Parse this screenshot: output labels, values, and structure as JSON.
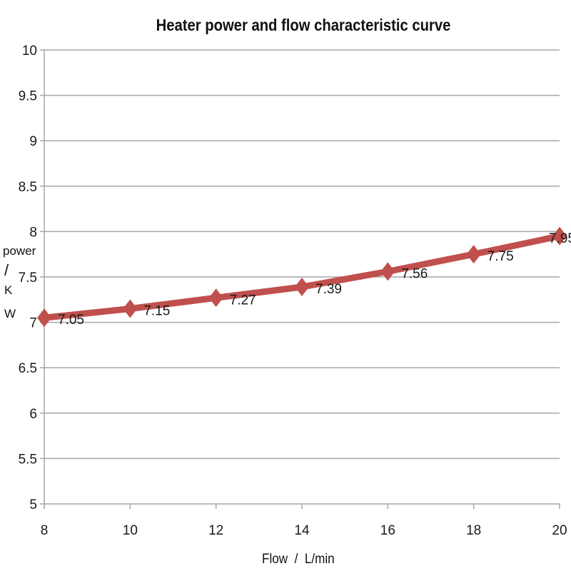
{
  "chart_data": {
    "type": "line",
    "title": "Heater power and flow characteristic curve",
    "xlabel": "Flow  /  L/min",
    "ylabel": "power / K W",
    "x": [
      8,
      10,
      12,
      14,
      16,
      18,
      20
    ],
    "series": [
      {
        "name": "power",
        "values": [
          7.05,
          7.15,
          7.27,
          7.39,
          7.56,
          7.75,
          7.95
        ],
        "data_labels": [
          "7.05",
          "7.15",
          "7.27",
          "7.39",
          "7.56",
          "7.75",
          "7.95"
        ],
        "color": "#c0504d",
        "marker": "diamond"
      }
    ],
    "xlim": [
      8,
      20
    ],
    "ylim": [
      5,
      10
    ],
    "xticks": [
      "8",
      "10",
      "12",
      "14",
      "16",
      "18",
      "20"
    ],
    "yticks": [
      "5",
      "5.5",
      "6",
      "6.5",
      "7",
      "7.5",
      "8",
      "8.5",
      "9",
      "9.5",
      "10"
    ],
    "grid": {
      "horizontal": true,
      "vertical": false
    },
    "legend": null
  },
  "labels": {
    "title": "Heater power and flow characteristic curve",
    "ylabel_lines": [
      "power",
      "/",
      "K",
      "W"
    ],
    "xlabel": "Flow  /  L/min"
  },
  "colors": {
    "line": "#c0504d",
    "grid": "#a6a6a6",
    "axis": "#a6a6a6",
    "text": "#1a1a1a"
  }
}
